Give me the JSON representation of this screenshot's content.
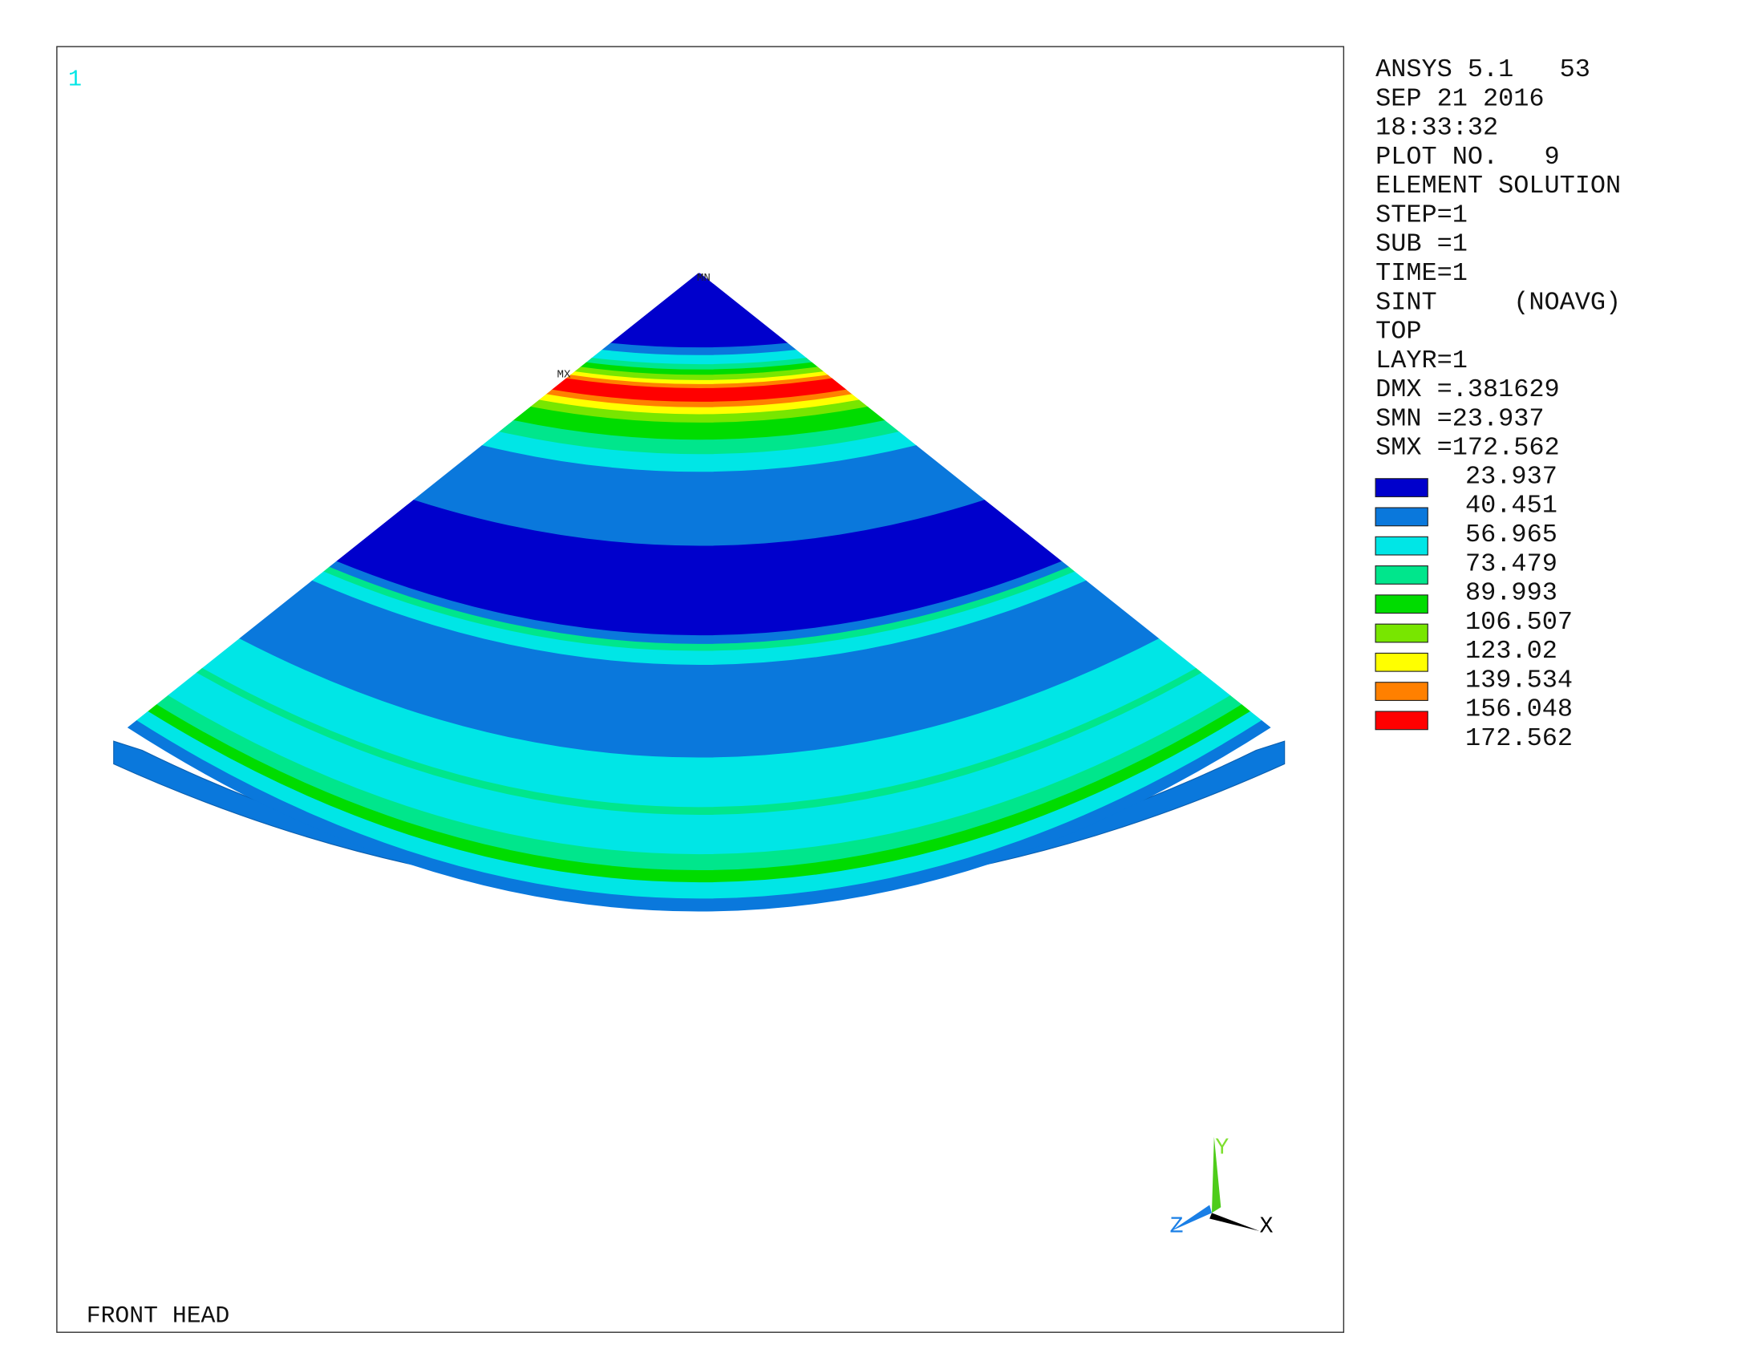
{
  "window_number": "1",
  "info_lines": [
    "ANSYS 5.1   53",
    "SEP 21 2016",
    "18:33:32",
    "PLOT NO.   9",
    "ELEMENT SOLUTION",
    "STEP=1",
    "SUB =1",
    "TIME=1",
    "SINT     (NOAVG)",
    "TOP",
    "LAYR=1",
    "DMX =.381629",
    "SMN =23.937",
    "SMX =172.562"
  ],
  "legend": {
    "labels": [
      "23.937",
      "40.451",
      "56.965",
      "73.479",
      "89.993",
      "106.507",
      "123.02",
      "139.534",
      "156.048",
      "172.562"
    ],
    "colors": [
      "#0000cc",
      "#0a78dc",
      "#00e6e6",
      "#00e68c",
      "#00dc00",
      "#78e600",
      "#ffff00",
      "#ff8000",
      "#ff0000"
    ]
  },
  "markers": {
    "min": "MN",
    "max": "MX"
  },
  "triad": {
    "x": "X",
    "y": "Y",
    "z": "Z"
  },
  "footer": "FRONT HEAD"
}
